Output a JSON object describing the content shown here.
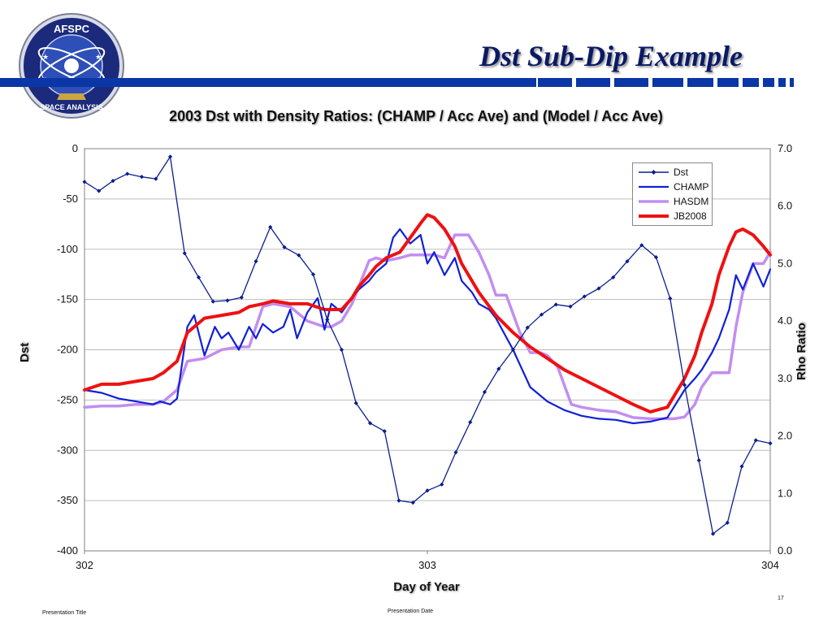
{
  "header": {
    "title": "Dst Sub-Dip Example",
    "logo_top_text": "AFSPC",
    "logo_bottom_text": "SPACE ANALYSIS"
  },
  "footer": {
    "presentation_title": "Presentation Title",
    "presentation_date": "Presentation Date",
    "page_number": "17"
  },
  "colors": {
    "brand_blue": "#0a36a6",
    "dst": "#0a1e8c",
    "champ": "#1020d8",
    "hasdm": "#c28ef0",
    "jb2008": "#ee1111"
  },
  "chart_data": {
    "type": "line",
    "title": "2003 Dst with Density Ratios: (CHAMP / Acc Ave) and (Model / Acc Ave)",
    "xlabel": "Day of Year",
    "ylabel_left": "Dst",
    "ylabel_right": "Rho Ratio",
    "xlim": [
      302,
      304
    ],
    "ylim_left": [
      -400,
      0
    ],
    "ylim_right": [
      0.0,
      7.0
    ],
    "x_ticks": [
      "302",
      "303",
      "304"
    ],
    "y_left_ticks": [
      "0",
      "-50",
      "-100",
      "-150",
      "-200",
      "-250",
      "-300",
      "-350",
      "-400"
    ],
    "y_right_ticks": [
      "7.0",
      "6.0",
      "5.0",
      "4.0",
      "3.0",
      "2.0",
      "1.0",
      "0.0"
    ],
    "grid": true,
    "legend_position": "top-right",
    "series": [
      {
        "name": "Dst",
        "axis": "left",
        "marker": "diamond",
        "x": [
          302.0,
          302.042,
          302.083,
          302.125,
          302.167,
          302.208,
          302.25,
          302.292,
          302.333,
          302.375,
          302.417,
          302.458,
          302.5,
          302.542,
          302.583,
          302.625,
          302.667,
          302.708,
          302.75,
          302.792,
          302.833,
          302.875,
          302.917,
          302.958,
          303.0,
          303.042,
          303.083,
          303.125,
          303.167,
          303.208,
          303.25,
          303.292,
          303.333,
          303.375,
          303.417,
          303.458,
          303.5,
          303.542,
          303.583,
          303.625,
          303.667,
          303.708,
          303.75,
          303.792,
          303.833,
          303.875,
          303.917,
          303.958,
          304.0
        ],
        "values": [
          -33,
          -42,
          -32,
          -25,
          -28,
          -30,
          -8,
          -104,
          -128,
          -152,
          -151,
          -148,
          -112,
          -78,
          -98,
          -106,
          -125,
          -170,
          -200,
          -253,
          -273,
          -281,
          -350,
          -352,
          -340,
          -334,
          -302,
          -272,
          -242,
          -219,
          -200,
          -178,
          -165,
          -155,
          -157,
          -147,
          -139,
          -128,
          -112,
          -96,
          -108,
          -149,
          -235,
          -310,
          -383,
          -372,
          -316,
          -290,
          -293
        ]
      },
      {
        "name": "CHAMP",
        "axis": "right",
        "x": [
          302.0,
          302.05,
          302.1,
          302.15,
          302.2,
          302.22,
          302.25,
          302.27,
          302.3,
          302.32,
          302.35,
          302.38,
          302.4,
          302.42,
          302.45,
          302.48,
          302.5,
          302.52,
          302.55,
          302.58,
          302.6,
          302.62,
          302.65,
          302.68,
          302.7,
          302.72,
          302.75,
          302.78,
          302.8,
          302.83,
          302.85,
          302.88,
          302.9,
          302.92,
          302.95,
          302.98,
          303.0,
          303.02,
          303.05,
          303.08,
          303.1,
          303.13,
          303.15,
          303.18,
          303.2,
          303.25,
          303.3,
          303.35,
          303.4,
          303.45,
          303.5,
          303.55,
          303.6,
          303.65,
          303.7,
          303.75,
          303.78,
          303.8,
          303.83,
          303.85,
          303.88,
          303.9,
          303.92,
          303.95,
          303.98,
          304.0
        ],
        "values": [
          2.8,
          2.75,
          2.65,
          2.6,
          2.55,
          2.6,
          2.55,
          2.65,
          3.9,
          4.1,
          3.4,
          3.9,
          3.7,
          3.8,
          3.5,
          3.9,
          3.7,
          3.95,
          3.8,
          3.9,
          4.2,
          3.7,
          4.15,
          4.4,
          3.85,
          4.3,
          4.15,
          4.4,
          4.55,
          4.7,
          4.85,
          5.0,
          5.45,
          5.6,
          5.35,
          5.5,
          5.0,
          5.2,
          4.8,
          5.1,
          4.7,
          4.5,
          4.3,
          4.2,
          4.05,
          3.5,
          2.85,
          2.6,
          2.45,
          2.35,
          2.3,
          2.28,
          2.22,
          2.25,
          2.32,
          2.8,
          3.0,
          3.15,
          3.45,
          3.7,
          4.2,
          4.8,
          4.55,
          5.0,
          4.6,
          4.9
        ]
      },
      {
        "name": "HASDM",
        "axis": "right",
        "x": [
          302.0,
          302.05,
          302.1,
          302.15,
          302.2,
          302.23,
          302.27,
          302.3,
          302.35,
          302.4,
          302.45,
          302.48,
          302.52,
          302.55,
          302.6,
          302.65,
          302.7,
          302.72,
          302.75,
          302.78,
          302.8,
          302.83,
          302.85,
          302.88,
          302.92,
          302.95,
          302.98,
          303.0,
          303.02,
          303.05,
          303.08,
          303.1,
          303.12,
          303.15,
          303.18,
          303.2,
          303.23,
          303.27,
          303.3,
          303.33,
          303.35,
          303.38,
          303.42,
          303.45,
          303.5,
          303.55,
          303.6,
          303.65,
          303.7,
          303.72,
          303.75,
          303.78,
          303.8,
          303.83,
          303.85,
          303.88,
          303.9,
          303.92,
          303.95,
          303.98,
          304.0
        ],
        "values": [
          2.5,
          2.52,
          2.52,
          2.55,
          2.55,
          2.6,
          2.8,
          3.3,
          3.35,
          3.5,
          3.55,
          3.55,
          4.25,
          4.3,
          4.25,
          4.0,
          3.9,
          3.9,
          4.0,
          4.3,
          4.6,
          5.05,
          5.1,
          5.05,
          5.1,
          5.15,
          5.15,
          5.15,
          5.15,
          5.1,
          5.5,
          5.5,
          5.5,
          5.2,
          4.8,
          4.45,
          4.45,
          3.8,
          3.45,
          3.45,
          3.4,
          3.2,
          2.55,
          2.5,
          2.45,
          2.42,
          2.32,
          2.3,
          2.3,
          2.3,
          2.33,
          2.55,
          2.85,
          3.1,
          3.1,
          3.1,
          3.9,
          4.5,
          5.0,
          5.0,
          5.2
        ]
      },
      {
        "name": "JB2008",
        "axis": "right",
        "x": [
          302.0,
          302.05,
          302.1,
          302.15,
          302.2,
          302.23,
          302.27,
          302.3,
          302.35,
          302.4,
          302.45,
          302.48,
          302.52,
          302.55,
          302.6,
          302.65,
          302.7,
          302.72,
          302.75,
          302.78,
          302.8,
          302.83,
          302.85,
          302.88,
          302.92,
          302.95,
          302.98,
          303.0,
          303.02,
          303.05,
          303.08,
          303.1,
          303.15,
          303.2,
          303.25,
          303.3,
          303.35,
          303.4,
          303.45,
          303.5,
          303.55,
          303.6,
          303.65,
          303.7,
          303.72,
          303.75,
          303.78,
          303.8,
          303.83,
          303.85,
          303.88,
          303.9,
          303.92,
          303.95,
          303.98,
          304.0
        ],
        "values": [
          2.8,
          2.9,
          2.9,
          2.95,
          3.0,
          3.1,
          3.3,
          3.8,
          4.05,
          4.1,
          4.15,
          4.25,
          4.3,
          4.35,
          4.3,
          4.3,
          4.2,
          4.2,
          4.2,
          4.4,
          4.6,
          4.8,
          4.95,
          5.1,
          5.2,
          5.45,
          5.7,
          5.85,
          5.8,
          5.6,
          5.3,
          5.0,
          4.5,
          4.1,
          3.8,
          3.55,
          3.35,
          3.15,
          3.0,
          2.85,
          2.7,
          2.55,
          2.42,
          2.5,
          2.7,
          3.0,
          3.4,
          3.8,
          4.3,
          4.8,
          5.3,
          5.55,
          5.6,
          5.5,
          5.3,
          5.15
        ]
      }
    ]
  }
}
